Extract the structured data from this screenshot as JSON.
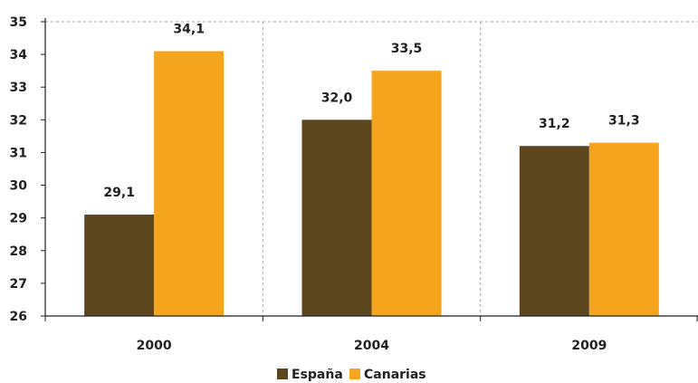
{
  "chart_data": {
    "type": "bar",
    "categories": [
      "2000",
      "2004",
      "2009"
    ],
    "series": [
      {
        "name": "España",
        "values": [
          29.1,
          32.0,
          31.2
        ],
        "labels": [
          "29,1",
          "32,0",
          "31,2"
        ],
        "color": "#5c461d"
      },
      {
        "name": "Canarias",
        "values": [
          34.1,
          33.5,
          31.3
        ],
        "labels": [
          "34,1",
          "33,5",
          "31,3"
        ],
        "color": "#f5a41e"
      }
    ],
    "ylim": [
      26,
      35
    ],
    "yticks": [
      26,
      27,
      28,
      29,
      30,
      31,
      32,
      33,
      34,
      35
    ],
    "grid": "vertical-dashed",
    "legend_position": "bottom-center",
    "title": "",
    "xlabel": "",
    "ylabel": ""
  }
}
